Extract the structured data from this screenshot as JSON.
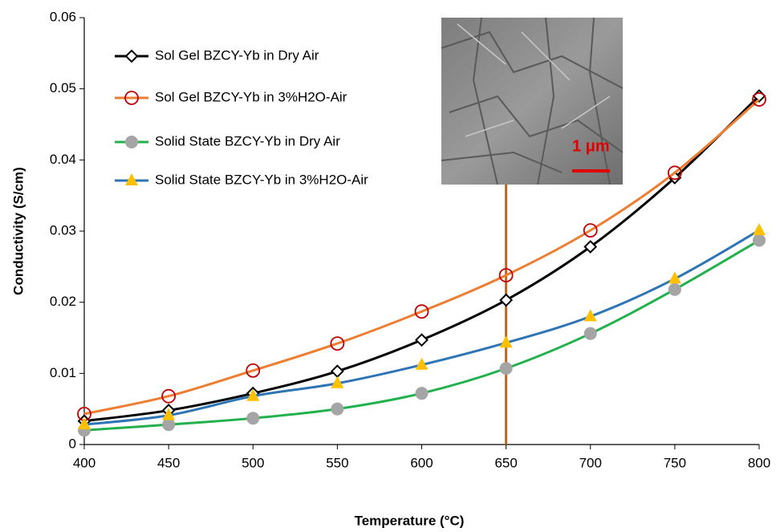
{
  "chart_data": {
    "type": "line",
    "x_label": "Temperature (°C)",
    "y_label": "Conductivity (S/cm)",
    "x": [
      400,
      450,
      500,
      550,
      600,
      650,
      700,
      750,
      800
    ],
    "series": [
      {
        "name": "Sol Gel BZCY-Yb in Dry Air",
        "color": "#000000",
        "marker": "diamond",
        "marker_color": "#000000",
        "values": [
          0.0033,
          0.0048,
          0.0072,
          0.0103,
          0.0147,
          0.0203,
          0.0278,
          0.0375,
          0.049
        ]
      },
      {
        "name": "Sol Gel BZCY-Yb in 3%H2O-Air",
        "color": "#ed7d31",
        "marker": "circle",
        "marker_color": "#c00000",
        "values": [
          0.0043,
          0.0068,
          0.0104,
          0.0142,
          0.0187,
          0.0238,
          0.0301,
          0.0382,
          0.0485
        ]
      },
      {
        "name": "Solid State BZCY-Yb in Dry Air",
        "color": "#22b14c",
        "marker": "dot",
        "marker_color": "#a5a5a5",
        "values": [
          0.002,
          0.0028,
          0.0037,
          0.005,
          0.0072,
          0.0107,
          0.0156,
          0.0218,
          0.0287
        ]
      },
      {
        "name": "Solid State BZCY-Yb in 3%H2O-Air",
        "color": "#2e75b6",
        "marker": "triangle",
        "marker_color": "#ffc000",
        "values": [
          0.0028,
          0.0041,
          0.0068,
          0.0086,
          0.0112,
          0.0143,
          0.018,
          0.0233,
          0.0301
        ]
      }
    ],
    "xlim": [
      400,
      800
    ],
    "xticks": [
      400,
      450,
      500,
      550,
      600,
      650,
      700,
      750,
      800
    ],
    "ylim": [
      0,
      0.06
    ],
    "yticks": [
      0,
      0.01,
      0.02,
      0.03,
      0.04,
      0.05,
      0.06
    ],
    "grid": false,
    "legend": "upper left",
    "vline": 650,
    "vline_color": "#c0651e",
    "inset_label": "1 μm"
  }
}
